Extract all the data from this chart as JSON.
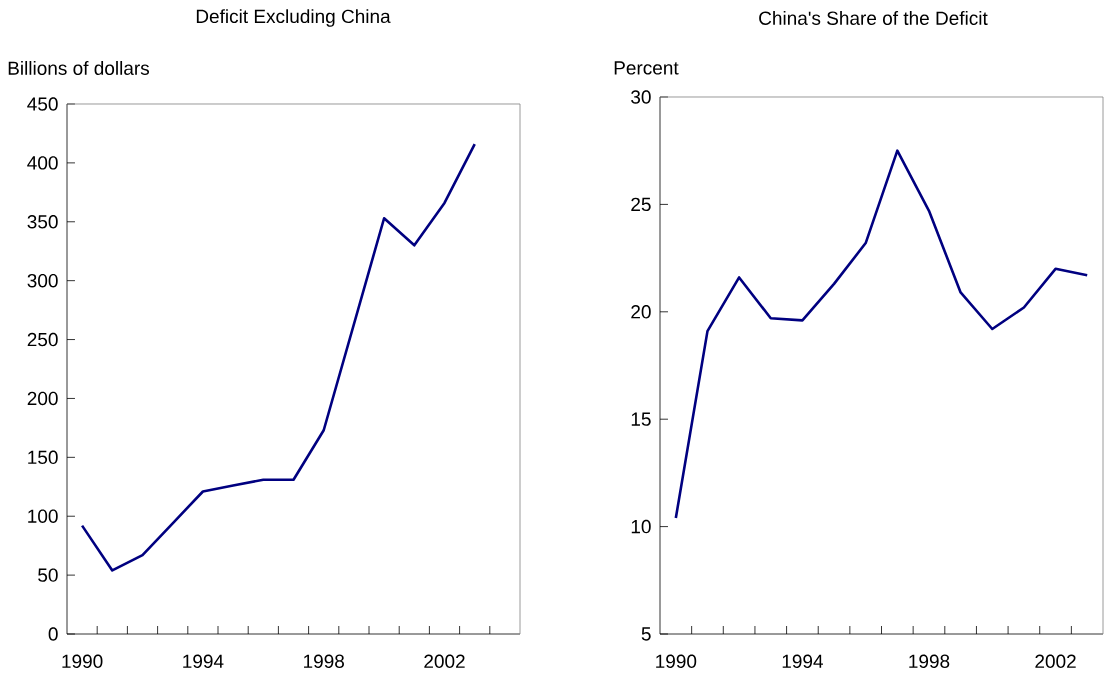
{
  "chart_data": [
    {
      "type": "line",
      "title": "Deficit Excluding China",
      "ylabel": "Billions of dollars",
      "x": [
        1990,
        1991,
        1992,
        1993,
        1994,
        1995,
        1996,
        1997,
        1998,
        1999,
        2000,
        2001,
        2002,
        2003
      ],
      "series": [
        {
          "color": "#000080",
          "values": [
            92,
            54,
            67,
            94,
            121,
            126,
            131,
            131,
            173,
            263,
            353,
            330,
            366,
            416
          ]
        }
      ],
      "xlim": [
        1989.5,
        2004.5
      ],
      "xticks": [
        1990,
        1994,
        1998,
        2002,
        {
          "value": 1990.5,
          "label": null
        },
        {
          "value": 1991.5,
          "label": null
        },
        {
          "value": 1992.5,
          "label": null
        },
        {
          "value": 1993.5,
          "label": null
        },
        {
          "value": 1994.5,
          "label": null
        },
        {
          "value": 1995.5,
          "label": null
        },
        {
          "value": 1996.5,
          "label": null
        },
        {
          "value": 1997.5,
          "label": null
        },
        {
          "value": 1998.5,
          "label": null
        },
        {
          "value": 1999.5,
          "label": null
        },
        {
          "value": 2000.5,
          "label": null
        },
        {
          "value": 2001.5,
          "label": null
        },
        {
          "value": 2002.5,
          "label": null
        },
        {
          "value": 2003.5,
          "label": null
        }
      ],
      "ylim": [
        0,
        450
      ],
      "yticks": [
        0,
        50,
        100,
        150,
        200,
        250,
        300,
        350,
        400,
        450
      ]
    },
    {
      "type": "line",
      "title": "China's Share of the Deficit",
      "ylabel": "Percent",
      "x": [
        1990,
        1991,
        1992,
        1993,
        1994,
        1995,
        1996,
        1997,
        1998,
        1999,
        2000,
        2001,
        2002,
        2003
      ],
      "series": [
        {
          "color": "#000080",
          "values": [
            10.4,
            19.1,
            21.6,
            19.7,
            19.6,
            21.3,
            23.2,
            27.5,
            24.7,
            20.9,
            19.2,
            20.2,
            22.0,
            21.7
          ]
        }
      ],
      "xlim": [
        1989.5,
        2003.5
      ],
      "xticks": [
        1990,
        1994,
        1998,
        2002,
        {
          "value": 1990.5,
          "label": null
        },
        {
          "value": 1991.5,
          "label": null
        },
        {
          "value": 1992.5,
          "label": null
        },
        {
          "value": 1993.5,
          "label": null
        },
        {
          "value": 1994.5,
          "label": null
        },
        {
          "value": 1995.5,
          "label": null
        },
        {
          "value": 1996.5,
          "label": null
        },
        {
          "value": 1997.5,
          "label": null
        },
        {
          "value": 1998.5,
          "label": null
        },
        {
          "value": 1999.5,
          "label": null
        },
        {
          "value": 2000.5,
          "label": null
        },
        {
          "value": 2001.5,
          "label": null
        },
        {
          "value": 2002.5,
          "label": null
        }
      ],
      "ylim": [
        5,
        30
      ],
      "yticks": [
        5,
        10,
        15,
        20,
        25,
        30
      ]
    }
  ]
}
